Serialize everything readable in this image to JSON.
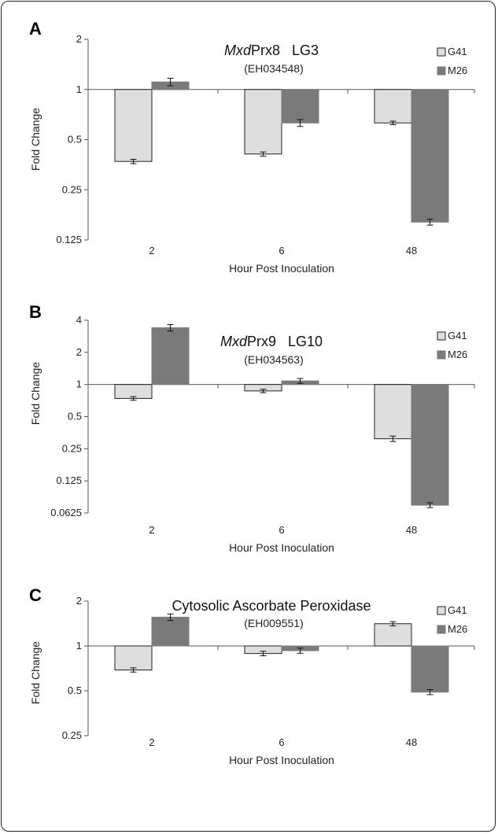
{
  "chart_data": [
    {
      "type": "bar",
      "panel_label": "A",
      "title_italic": "Mxd",
      "title_rest": "Prx8   LG3",
      "subtitle": "(EH034548)",
      "xlabel": "Hour Post Inoculation",
      "ylabel": "Fold Change",
      "y_scale": "log2",
      "ylim": [
        0.125,
        2
      ],
      "yticks": [
        2,
        1,
        0.5,
        0.25,
        0.125
      ],
      "ytick_labels": [
        "2",
        "1",
        "0.5",
        "0.25",
        "0.125"
      ],
      "baseline": 1,
      "categories": [
        "2",
        "6",
        "48"
      ],
      "legend_position": "top-right",
      "series": [
        {
          "name": "G41",
          "color": "#dedede",
          "values": [
            0.37,
            0.41,
            0.63
          ],
          "errors": [
            0.005,
            0.005,
            0.005
          ]
        },
        {
          "name": "M26",
          "color": "#7a7a7a",
          "values": [
            1.11,
            0.63,
            0.16
          ],
          "errors": [
            0.04,
            0.02,
            0.004
          ]
        }
      ]
    },
    {
      "type": "bar",
      "panel_label": "B",
      "title_italic": "Mxd",
      "title_rest": "Prx9   LG10",
      "subtitle": "(EH034563)",
      "xlabel": "Hour Post Inoculation",
      "ylabel": "Fold Change",
      "y_scale": "log2",
      "ylim": [
        0.0625,
        4
      ],
      "yticks": [
        4,
        2,
        1,
        0.5,
        0.25,
        0.125,
        0.0625
      ],
      "ytick_labels": [
        "4",
        "2",
        "1",
        "0.5",
        "0.25",
        "0.125",
        "0.0625"
      ],
      "baseline": 1,
      "categories": [
        "2",
        "6",
        "48"
      ],
      "legend_position": "top-right",
      "series": [
        {
          "name": "G41",
          "color": "#dedede",
          "values": [
            0.74,
            0.87,
            0.31
          ],
          "errors": [
            0.01,
            0.01,
            0.01
          ]
        },
        {
          "name": "M26",
          "color": "#7a7a7a",
          "values": [
            3.4,
            1.08,
            0.074
          ],
          "errors": [
            0.15,
            0.03,
            0.002
          ]
        }
      ]
    },
    {
      "type": "bar",
      "panel_label": "C",
      "title_italic": "",
      "title_rest": "Cytosolic Ascorbate Peroxidase",
      "subtitle": "(EH009551)",
      "xlabel": "Hour Post Inoculation",
      "ylabel": "Fold Change",
      "y_scale": "log2",
      "ylim": [
        0.25,
        2
      ],
      "yticks": [
        2,
        1,
        0.5,
        0.25
      ],
      "ytick_labels": [
        "2",
        "1",
        "0.5",
        "0.25"
      ],
      "baseline": 1,
      "categories": [
        "2",
        "6",
        "48"
      ],
      "legend_position": "top-right",
      "series": [
        {
          "name": "G41",
          "color": "#dedede",
          "values": [
            0.69,
            0.89,
            1.41
          ],
          "errors": [
            0.01,
            0.015,
            0.02
          ]
        },
        {
          "name": "M26",
          "color": "#7a7a7a",
          "values": [
            1.56,
            0.93,
            0.49
          ],
          "errors": [
            0.05,
            0.02,
            0.01
          ]
        }
      ]
    }
  ]
}
